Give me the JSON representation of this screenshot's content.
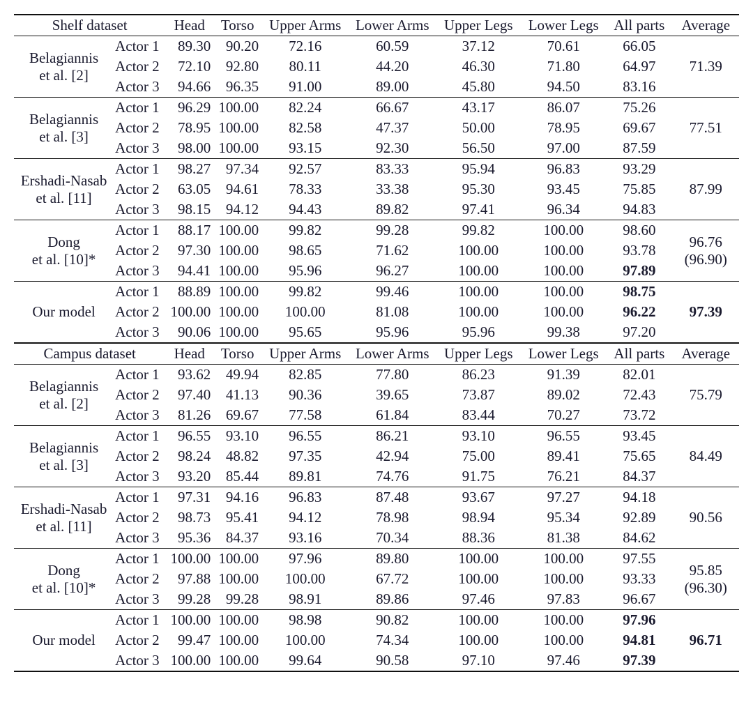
{
  "colors": {
    "text": "#1a1a2e",
    "rule_heavy": "#111111",
    "rule_thin": "#111111",
    "background": "#ffffff"
  },
  "typography": {
    "font_family": "Times New Roman",
    "font_size_pt": 16,
    "bold_weight": 700
  },
  "columns": [
    "Head",
    "Torso",
    "Upper Arms",
    "Lower Arms",
    "Upper Legs",
    "Lower Legs",
    "All parts",
    "Average"
  ],
  "datasets": [
    {
      "title": "Shelf dataset",
      "groups": [
        {
          "method_l1": "Belagiannis",
          "method_l2": "et al. [2]",
          "average": "71.39",
          "average_sub": "",
          "rows": [
            {
              "actor": "Actor 1",
              "vals": [
                "89.30",
                "90.20",
                "72.16",
                "60.59",
                "37.12",
                "70.61",
                "66.05"
              ],
              "bold": []
            },
            {
              "actor": "Actor 2",
              "vals": [
                "72.10",
                "92.80",
                "80.11",
                "44.20",
                "46.30",
                "71.80",
                "64.97"
              ],
              "bold": []
            },
            {
              "actor": "Actor 3",
              "vals": [
                "94.66",
                "96.35",
                "91.00",
                "89.00",
                "45.80",
                "94.50",
                "83.16"
              ],
              "bold": []
            }
          ]
        },
        {
          "method_l1": "Belagiannis",
          "method_l2": "et al. [3]",
          "average": "77.51",
          "average_sub": "",
          "rows": [
            {
              "actor": "Actor 1",
              "vals": [
                "96.29",
                "100.00",
                "82.24",
                "66.67",
                "43.17",
                "86.07",
                "75.26"
              ],
              "bold": []
            },
            {
              "actor": "Actor 2",
              "vals": [
                "78.95",
                "100.00",
                "82.58",
                "47.37",
                "50.00",
                "78.95",
                "69.67"
              ],
              "bold": []
            },
            {
              "actor": "Actor 3",
              "vals": [
                "98.00",
                "100.00",
                "93.15",
                "92.30",
                "56.50",
                "97.00",
                "87.59"
              ],
              "bold": []
            }
          ]
        },
        {
          "method_l1": "Ershadi-Nasab",
          "method_l2": "et al. [11]",
          "average": "87.99",
          "average_sub": "",
          "rows": [
            {
              "actor": "Actor 1",
              "vals": [
                "98.27",
                "97.34",
                "92.57",
                "83.33",
                "95.94",
                "96.83",
                "93.29"
              ],
              "bold": []
            },
            {
              "actor": "Actor 2",
              "vals": [
                "63.05",
                "94.61",
                "78.33",
                "33.38",
                "95.30",
                "93.45",
                "75.85"
              ],
              "bold": []
            },
            {
              "actor": "Actor 3",
              "vals": [
                "98.15",
                "94.12",
                "94.43",
                "89.82",
                "97.41",
                "96.34",
                "94.83"
              ],
              "bold": []
            }
          ]
        },
        {
          "method_l1": "Dong",
          "method_l2": "et al. [10]*",
          "average": "96.76",
          "average_sub": "(96.90)",
          "rows": [
            {
              "actor": "Actor 1",
              "vals": [
                "88.17",
                "100.00",
                "99.82",
                "99.28",
                "99.82",
                "100.00",
                "98.60"
              ],
              "bold": []
            },
            {
              "actor": "Actor 2",
              "vals": [
                "97.30",
                "100.00",
                "98.65",
                "71.62",
                "100.00",
                "100.00",
                "93.78"
              ],
              "bold": []
            },
            {
              "actor": "Actor 3",
              "vals": [
                "94.41",
                "100.00",
                "95.96",
                "96.27",
                "100.00",
                "100.00",
                "97.89"
              ],
              "bold": [
                6
              ]
            }
          ]
        },
        {
          "method_l1": "Our model",
          "method_l2": "",
          "average": "97.39",
          "average_bold": true,
          "average_sub": "",
          "rows": [
            {
              "actor": "Actor 1",
              "vals": [
                "88.89",
                "100.00",
                "99.82",
                "99.46",
                "100.00",
                "100.00",
                "98.75"
              ],
              "bold": [
                6
              ]
            },
            {
              "actor": "Actor 2",
              "vals": [
                "100.00",
                "100.00",
                "100.00",
                "81.08",
                "100.00",
                "100.00",
                "96.22"
              ],
              "bold": [
                6
              ]
            },
            {
              "actor": "Actor 3",
              "vals": [
                "90.06",
                "100.00",
                "95.65",
                "95.96",
                "95.96",
                "99.38",
                "97.20"
              ],
              "bold": []
            }
          ]
        }
      ]
    },
    {
      "title": "Campus dataset",
      "groups": [
        {
          "method_l1": "Belagiannis",
          "method_l2": "et al. [2]",
          "average": "75.79",
          "average_sub": "",
          "rows": [
            {
              "actor": "Actor 1",
              "vals": [
                "93.62",
                "49.94",
                "82.85",
                "77.80",
                "86.23",
                "91.39",
                "82.01"
              ],
              "bold": []
            },
            {
              "actor": "Actor 2",
              "vals": [
                "97.40",
                "41.13",
                "90.36",
                "39.65",
                "73.87",
                "89.02",
                "72.43"
              ],
              "bold": []
            },
            {
              "actor": "Actor 3",
              "vals": [
                "81.26",
                "69.67",
                "77.58",
                "61.84",
                "83.44",
                "70.27",
                "73.72"
              ],
              "bold": []
            }
          ]
        },
        {
          "method_l1": "Belagiannis",
          "method_l2": "et al. [3]",
          "average": "84.49",
          "average_sub": "",
          "rows": [
            {
              "actor": "Actor 1",
              "vals": [
                "96.55",
                "93.10",
                "96.55",
                "86.21",
                "93.10",
                "96.55",
                "93.45"
              ],
              "bold": []
            },
            {
              "actor": "Actor 2",
              "vals": [
                "98.24",
                "48.82",
                "97.35",
                "42.94",
                "75.00",
                "89.41",
                "75.65"
              ],
              "bold": []
            },
            {
              "actor": "Actor 3",
              "vals": [
                "93.20",
                "85.44",
                "89.81",
                "74.76",
                "91.75",
                "76.21",
                "84.37"
              ],
              "bold": []
            }
          ]
        },
        {
          "method_l1": "Ershadi-Nasab",
          "method_l2": "et al. [11]",
          "average": "90.56",
          "average_sub": "",
          "rows": [
            {
              "actor": "Actor 1",
              "vals": [
                "97.31",
                "94.16",
                "96.83",
                "87.48",
                "93.67",
                "97.27",
                "94.18"
              ],
              "bold": []
            },
            {
              "actor": "Actor 2",
              "vals": [
                "98.73",
                "95.41",
                "94.12",
                "78.98",
                "98.94",
                "95.34",
                "92.89"
              ],
              "bold": []
            },
            {
              "actor": "Actor 3",
              "vals": [
                "95.36",
                "84.37",
                "93.16",
                "70.34",
                "88.36",
                "81.38",
                "84.62"
              ],
              "bold": []
            }
          ]
        },
        {
          "method_l1": "Dong",
          "method_l2": "et al. [10]*",
          "average": "95.85",
          "average_sub": "(96.30)",
          "rows": [
            {
              "actor": "Actor 1",
              "vals": [
                "100.00",
                "100.00",
                "97.96",
                "89.80",
                "100.00",
                "100.00",
                "97.55"
              ],
              "bold": []
            },
            {
              "actor": "Actor 2",
              "vals": [
                "97.88",
                "100.00",
                "100.00",
                "67.72",
                "100.00",
                "100.00",
                "93.33"
              ],
              "bold": []
            },
            {
              "actor": "Actor 3",
              "vals": [
                "99.28",
                "99.28",
                "98.91",
                "89.86",
                "97.46",
                "97.83",
                "96.67"
              ],
              "bold": []
            }
          ]
        },
        {
          "method_l1": "Our model",
          "method_l2": "",
          "average": "96.71",
          "average_bold": true,
          "average_sub": "",
          "rows": [
            {
              "actor": "Actor 1",
              "vals": [
                "100.00",
                "100.00",
                "98.98",
                "90.82",
                "100.00",
                "100.00",
                "97.96"
              ],
              "bold": [
                6
              ]
            },
            {
              "actor": "Actor 2",
              "vals": [
                "99.47",
                "100.00",
                "100.00",
                "74.34",
                "100.00",
                "100.00",
                "94.81"
              ],
              "bold": [
                6
              ]
            },
            {
              "actor": "Actor 3",
              "vals": [
                "100.00",
                "100.00",
                "99.64",
                "90.58",
                "97.10",
                "97.46",
                "97.39"
              ],
              "bold": [
                6
              ]
            }
          ]
        }
      ]
    }
  ]
}
